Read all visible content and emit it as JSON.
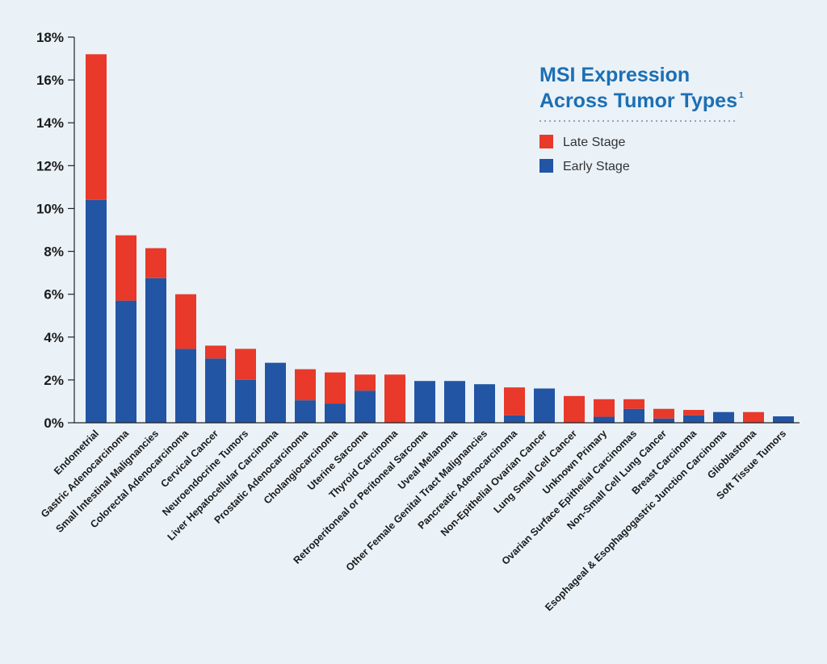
{
  "chart_data": {
    "type": "bar",
    "stacked": true,
    "title_lines": [
      "MSI Expression",
      "Across Tumor Types"
    ],
    "title_superscript": "1",
    "xlabel": "",
    "ylabel": "",
    "ylim": [
      0,
      18
    ],
    "yticks": [
      0,
      2,
      4,
      6,
      8,
      10,
      12,
      14,
      16,
      18
    ],
    "ytick_labels": [
      "0%",
      "2%",
      "4%",
      "6%",
      "8%",
      "10%",
      "12%",
      "14%",
      "16%",
      "18%"
    ],
    "grid": false,
    "legend_position": "top-right",
    "categories": [
      "Endometrial",
      "Gastric Adenocarcinoma",
      "Small Intestinal Malignancies",
      "Colorectal Adenocarcinoma",
      "Cervical Cancer",
      "Neuroendocrine Tumors",
      "Liver Hepatocellular Carcinoma",
      "Prostatic Adenocarcinoma",
      "Cholangiocarcinoma",
      "Uterine Sarcoma",
      "Thyroid Carcinoma",
      "Retroperitoneal or Peritoneal Sarcoma",
      "Uveal Melanoma",
      "Other Female Genital Tract Malignancies",
      "Pancreatic Adenocarcinoma",
      "Non-Epithelial Ovarian Cancer",
      "Lung Small Cell Cancer",
      "Unknown Primary",
      "Ovarian Surface Epithelial Carcinomas",
      "Non-Small Cell Lung Cancer",
      "Breast Carcinoma",
      "Esophageal & Esophagogastric Junction Carcinoma",
      "Glioblastoma",
      "Soft Tissue Tumors"
    ],
    "series": [
      {
        "name": "Early Stage",
        "color": "#2255a4",
        "values": [
          10.4,
          5.7,
          6.75,
          3.45,
          3.0,
          2.0,
          2.8,
          1.05,
          0.9,
          1.5,
          0,
          1.95,
          1.95,
          1.8,
          0.35,
          1.6,
          0,
          0.28,
          0.65,
          0.2,
          0.35,
          0.5,
          0,
          0.3
        ]
      },
      {
        "name": "Late Stage",
        "color": "#e8392a",
        "values": [
          6.8,
          3.05,
          1.4,
          2.55,
          0.6,
          1.45,
          0,
          1.45,
          1.45,
          0.75,
          2.25,
          0,
          0,
          0,
          1.3,
          0,
          1.25,
          0.82,
          0.45,
          0.45,
          0.25,
          0,
          0.5,
          0
        ]
      }
    ]
  }
}
